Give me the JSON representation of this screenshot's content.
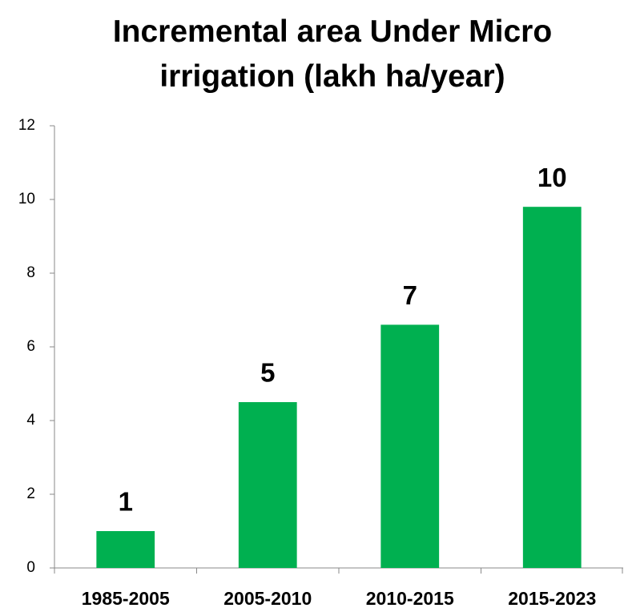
{
  "chart_data": {
    "type": "bar",
    "title": "Incremental area Under Micro irrigation (lakh ha/year)",
    "categories": [
      "1985-2005",
      "2005-2010",
      "2010-2015",
      "2015-2023"
    ],
    "values": [
      1.0,
      4.5,
      6.6,
      9.8
    ],
    "value_labels": [
      "1",
      "5",
      "7",
      "10"
    ],
    "color": "#00b050",
    "ylim": [
      0,
      12
    ],
    "yticks": [
      0,
      2,
      4,
      6,
      8,
      10,
      12
    ],
    "grid": false
  }
}
